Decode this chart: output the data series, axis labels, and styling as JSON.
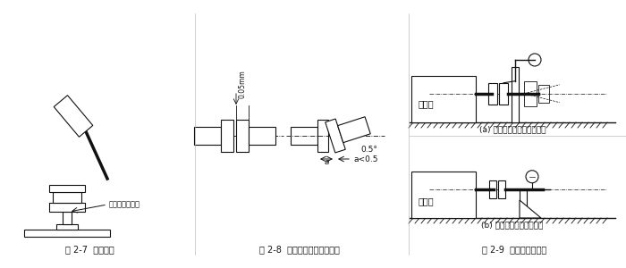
{
  "background": "#ffffff",
  "fig_label_7": "图 2-7  注意事项",
  "fig_label_8": "图 2-8  联轴器之间的安装精度",
  "fig_label_9": "图 2-9  安装精度的检查",
  "label_copper": "此处应垫一铜棒",
  "label_0_05mm": "0.05mm",
  "label_0_5deg": "0.5°",
  "label_a_lt_0_5": "a<0.5",
  "label_a": "a",
  "label_yuandongji_a": "原动机",
  "label_yuandongji_b": "原动机",
  "caption_a": "(a) 用百分表检查联轴器端面",
  "caption_b": "(b) 用百分表检查支座端面"
}
